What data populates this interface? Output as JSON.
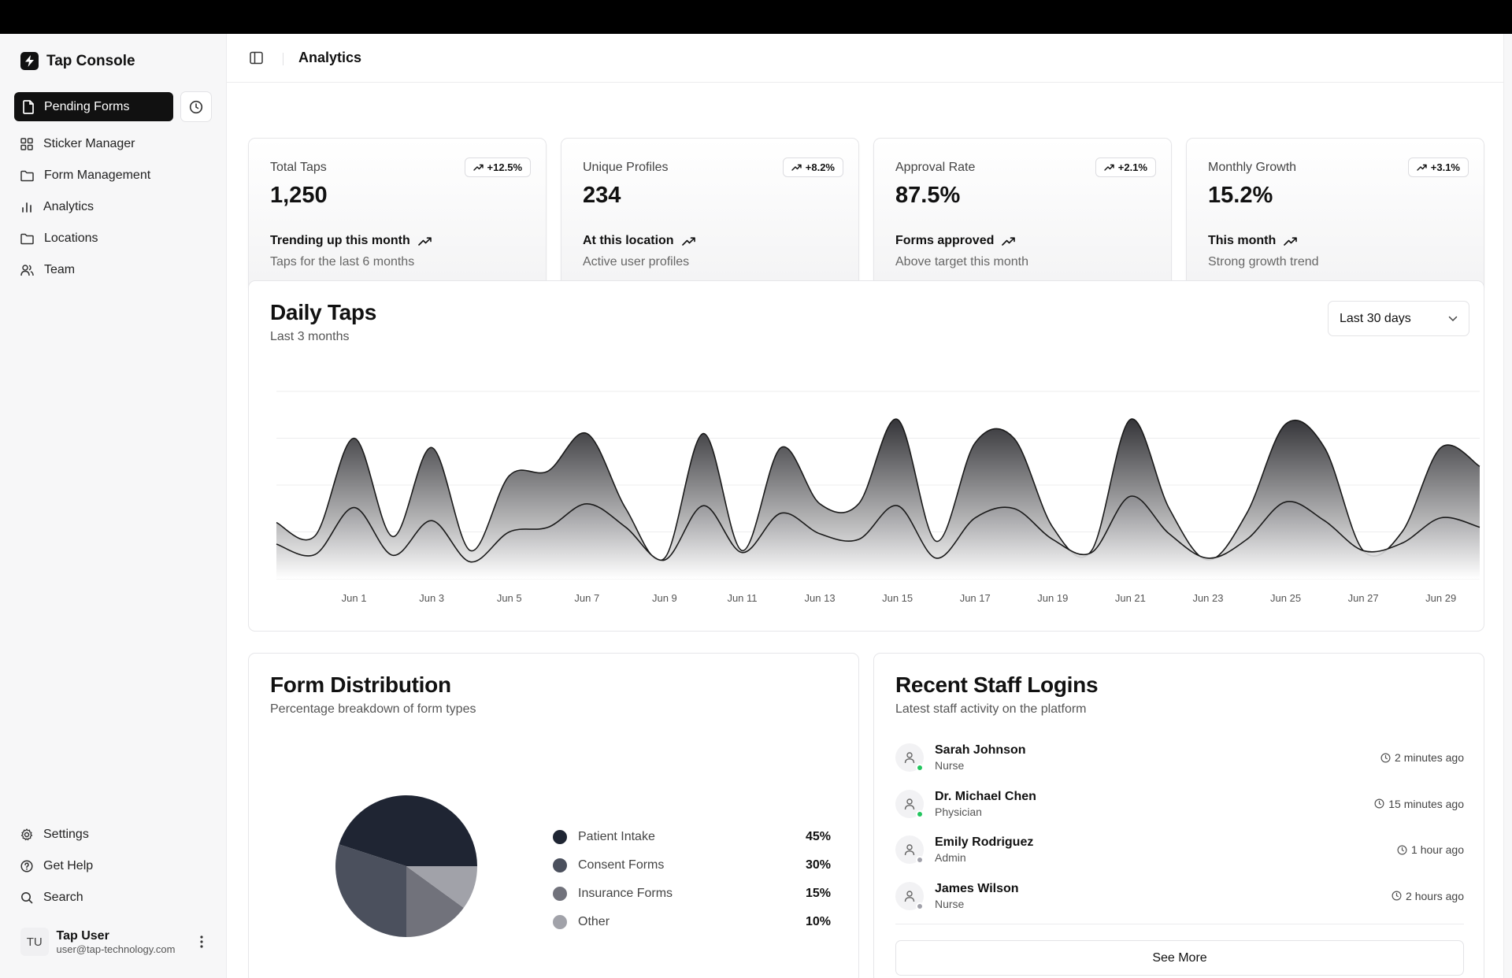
{
  "app": {
    "name": "Tap Console"
  },
  "sidebar": {
    "pending_label": "Pending Forms",
    "items": [
      {
        "label": "Sticker Manager",
        "icon": "grid-icon"
      },
      {
        "label": "Form Management",
        "icon": "folder-icon"
      },
      {
        "label": "Analytics",
        "icon": "bar-chart-icon"
      },
      {
        "label": "Locations",
        "icon": "folder-icon"
      },
      {
        "label": "Team",
        "icon": "users-icon"
      }
    ],
    "bottom_items": [
      {
        "label": "Settings",
        "icon": "gear-icon"
      },
      {
        "label": "Get Help",
        "icon": "help-icon"
      },
      {
        "label": "Search",
        "icon": "search-icon"
      }
    ],
    "user": {
      "initials": "TU",
      "name": "Tap User",
      "email": "user@tap-technology.com"
    }
  },
  "header": {
    "title": "Analytics"
  },
  "stats": [
    {
      "label": "Total Taps",
      "value": "1,250",
      "badge": "+12.5%",
      "foot_title": "Trending up this month",
      "foot_sub": "Taps for the last 6 months"
    },
    {
      "label": "Unique Profiles",
      "value": "234",
      "badge": "+8.2%",
      "foot_title": "At this location",
      "foot_sub": "Active user profiles"
    },
    {
      "label": "Approval Rate",
      "value": "87.5%",
      "badge": "+2.1%",
      "foot_title": "Forms approved",
      "foot_sub": "Above target this month"
    },
    {
      "label": "Monthly Growth",
      "value": "15.2%",
      "badge": "+3.1%",
      "foot_title": "This month",
      "foot_sub": "Strong growth trend"
    }
  ],
  "daily": {
    "title": "Daily Taps",
    "subtitle": "Last 3 months",
    "range": "Last 30 days"
  },
  "distribution": {
    "title": "Form Distribution",
    "subtitle": "Percentage breakdown of form types"
  },
  "logins": {
    "title": "Recent Staff Logins",
    "subtitle": "Latest staff activity on the platform",
    "items": [
      {
        "name": "Sarah Johnson",
        "role": "Nurse",
        "time": "2 minutes ago",
        "online": true
      },
      {
        "name": "Dr. Michael Chen",
        "role": "Physician",
        "time": "15 minutes ago",
        "online": true
      },
      {
        "name": "Emily Rodriguez",
        "role": "Admin",
        "time": "1 hour ago",
        "online": false
      },
      {
        "name": "James Wilson",
        "role": "Nurse",
        "time": "2 hours ago",
        "online": false
      }
    ],
    "see_more": "See More"
  },
  "colors": {
    "accent": "#111111",
    "online": "#22c55e",
    "offline": "#a1a1aa"
  },
  "chart_data": [
    {
      "type": "area",
      "title": "Daily Taps",
      "x": [
        "May 30",
        "May 31",
        "Jun 1",
        "Jun 2",
        "Jun 3",
        "Jun 4",
        "Jun 5",
        "Jun 6",
        "Jun 7",
        "Jun 8",
        "Jun 9",
        "Jun 10",
        "Jun 11",
        "Jun 12",
        "Jun 13",
        "Jun 14",
        "Jun 15",
        "Jun 16",
        "Jun 17",
        "Jun 18",
        "Jun 19",
        "Jun 20",
        "Jun 21",
        "Jun 22",
        "Jun 23",
        "Jun 24",
        "Jun 25",
        "Jun 26",
        "Jun 27",
        "Jun 28",
        "Jun 29",
        "Jun 30"
      ],
      "x_ticks": [
        "Jun 1",
        "Jun 3",
        "Jun 5",
        "Jun 7",
        "Jun 9",
        "Jun 11",
        "Jun 13",
        "Jun 15",
        "Jun 17",
        "Jun 19",
        "Jun 21",
        "Jun 23",
        "Jun 25",
        "Jun 27",
        "Jun 29"
      ],
      "series": [
        {
          "values": [
            60,
            46,
            150,
            45,
            140,
            30,
            110,
            115,
            155,
            75,
            22,
            155,
            30,
            140,
            80,
            80,
            170,
            40,
            145,
            150,
            55,
            30,
            170,
            75,
            20,
            70,
            165,
            140,
            30,
            50,
            140,
            120
          ]
        },
        {
          "values": [
            37,
            26,
            76,
            25,
            62,
            18,
            50,
            55,
            80,
            55,
            20,
            78,
            28,
            70,
            48,
            42,
            78,
            22,
            65,
            75,
            42,
            28,
            88,
            48,
            22,
            42,
            82,
            62,
            30,
            38,
            65,
            55
          ]
        }
      ],
      "ylim": [
        0,
        200
      ],
      "grid": true
    },
    {
      "type": "pie",
      "title": "Form Distribution",
      "categories": [
        "Patient Intake",
        "Consent Forms",
        "Insurance Forms",
        "Other"
      ],
      "values": [
        45,
        30,
        15,
        10
      ],
      "colors": [
        "#1f2533",
        "#4b505d",
        "#71727b",
        "#a1a2a9"
      ]
    }
  ]
}
